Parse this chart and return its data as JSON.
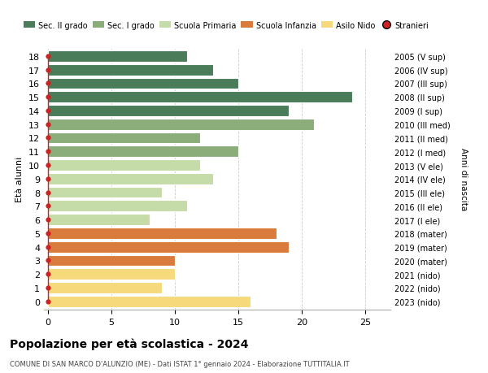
{
  "ages": [
    18,
    17,
    16,
    15,
    14,
    13,
    12,
    11,
    10,
    9,
    8,
    7,
    6,
    5,
    4,
    3,
    2,
    1,
    0
  ],
  "right_labels": [
    "2005 (V sup)",
    "2006 (IV sup)",
    "2007 (III sup)",
    "2008 (II sup)",
    "2009 (I sup)",
    "2010 (III med)",
    "2011 (II med)",
    "2012 (I med)",
    "2013 (V ele)",
    "2014 (IV ele)",
    "2015 (III ele)",
    "2016 (II ele)",
    "2017 (I ele)",
    "2018 (mater)",
    "2019 (mater)",
    "2020 (mater)",
    "2021 (nido)",
    "2022 (nido)",
    "2023 (nido)"
  ],
  "bar_values": [
    11,
    13,
    15,
    24,
    19,
    21,
    12,
    15,
    12,
    13,
    9,
    11,
    8,
    18,
    19,
    10,
    10,
    9,
    16
  ],
  "bar_colors": [
    "#4a7c59",
    "#4a7c59",
    "#4a7c59",
    "#4a7c59",
    "#4a7c59",
    "#8aad7a",
    "#8aad7a",
    "#8aad7a",
    "#c5dba8",
    "#c5dba8",
    "#c5dba8",
    "#c5dba8",
    "#c5dba8",
    "#d97b3c",
    "#d97b3c",
    "#d97b3c",
    "#f5d97a",
    "#f5d97a",
    "#f5d97a"
  ],
  "stranieri_x_all": [
    0,
    0,
    0,
    0,
    0,
    1,
    0,
    0,
    1,
    1,
    1,
    0,
    0,
    1,
    1,
    0,
    0,
    0,
    1
  ],
  "stranieri_color": "#cc2222",
  "legend_labels": [
    "Sec. II grado",
    "Sec. I grado",
    "Scuola Primaria",
    "Scuola Infanzia",
    "Asilo Nido",
    "Stranieri"
  ],
  "legend_colors": [
    "#4a7c59",
    "#8aad7a",
    "#c5dba8",
    "#d97b3c",
    "#f5d97a",
    "#cc2222"
  ],
  "ylabel": "Età alunni",
  "right_ylabel": "Anni di nascita",
  "title": "Popolazione per età scolastica - 2024",
  "subtitle": "COMUNE DI SAN MARCO D'ALUNZIO (ME) - Dati ISTAT 1° gennaio 2024 - Elaborazione TUTTITALIA.IT",
  "xlim": [
    -0.3,
    27
  ],
  "ylim": [
    -0.6,
    18.6
  ],
  "xticks": [
    0,
    5,
    10,
    15,
    20,
    25
  ],
  "background_color": "#ffffff",
  "grid_color": "#cccccc",
  "bar_height": 0.82
}
